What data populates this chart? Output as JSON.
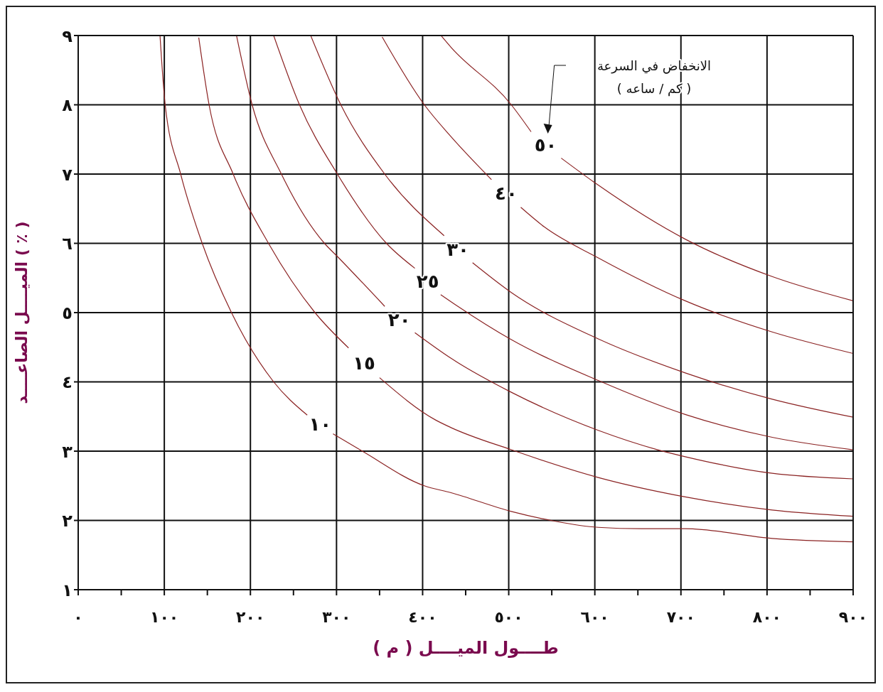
{
  "chart_data": {
    "type": "line",
    "xlabel": "طــــول الميــــل ( م )",
    "ylabel": "الميــــل الصاعــــد ( ٪ )",
    "legend_title": "الانخفاض في السرعة\n( كم / ساعه )",
    "xlim": [
      0,
      900
    ],
    "ylim": [
      1,
      9
    ],
    "xticks": [
      {
        "value": 0,
        "label": "٠"
      },
      {
        "value": 50,
        "label": null
      },
      {
        "value": 100,
        "label": "١٠٠"
      },
      {
        "value": 150,
        "label": null
      },
      {
        "value": 200,
        "label": "٢٠٠"
      },
      {
        "value": 250,
        "label": null
      },
      {
        "value": 300,
        "label": "٣٠٠"
      },
      {
        "value": 350,
        "label": null
      },
      {
        "value": 400,
        "label": "٤٠٠"
      },
      {
        "value": 450,
        "label": null
      },
      {
        "value": 500,
        "label": "٥٠٠"
      },
      {
        "value": 550,
        "label": null
      },
      {
        "value": 600,
        "label": "٦٠٠"
      },
      {
        "value": 650,
        "label": null
      },
      {
        "value": 700,
        "label": "٧٠٠"
      },
      {
        "value": 750,
        "label": null
      },
      {
        "value": 800,
        "label": "٨٠٠"
      },
      {
        "value": 850,
        "label": null
      },
      {
        "value": 900,
        "label": "٩٠٠"
      }
    ],
    "yticks": [
      {
        "value": 1,
        "label": "١"
      },
      {
        "value": 2,
        "label": "٢"
      },
      {
        "value": 3,
        "label": "٣"
      },
      {
        "value": 4,
        "label": "٤"
      },
      {
        "value": 5,
        "label": "٥"
      },
      {
        "value": 6,
        "label": "٦"
      },
      {
        "value": 7,
        "label": "٧"
      },
      {
        "value": 8,
        "label": "٨"
      },
      {
        "value": 9,
        "label": "٩"
      }
    ],
    "grid": true,
    "marker": "none",
    "line_style": "solid",
    "series": [
      {
        "name": "١٠",
        "color": "#8b2323",
        "x": [
          95,
          101,
          119,
          144,
          178,
          227,
          266,
          281,
          296,
          330,
          402,
          433,
          503,
          553,
          604,
          654,
          705,
          806,
          900
        ],
        "values": [
          9,
          8,
          7,
          6,
          5,
          4,
          3.52,
          null,
          3.25,
          3,
          2.5,
          2.4,
          2.13,
          1.99,
          1.9,
          1.88,
          1.88,
          1.74,
          1.69
        ]
      },
      {
        "name": "١٥",
        "color": "#8b2323",
        "x": [
          140,
          152,
          180,
          221,
          275,
          314,
          332,
          350,
          415,
          433,
          503,
          604,
          705,
          806,
          900
        ],
        "values": [
          8.97,
          8,
          7,
          6,
          5,
          4.49,
          null,
          4.06,
          3.45,
          3.34,
          3.02,
          2.62,
          2.34,
          2.15,
          2.06
        ]
      },
      {
        "name": "٢٠",
        "color": "#8b2323",
        "x": [
          184,
          202,
          236,
          286,
          301,
          356,
          373,
          391,
          433,
          503,
          604,
          673,
          705,
          806,
          900
        ],
        "values": [
          8.99,
          8,
          7,
          6,
          5.81,
          5.09,
          null,
          4.71,
          4.34,
          3.85,
          3.3,
          3.02,
          2.92,
          2.68,
          2.6
        ]
      },
      {
        "name": "٢٥",
        "color": "#8b2323",
        "x": [
          227,
          257,
          301,
          358,
          391,
          406,
          421,
          441,
          503,
          604,
          705,
          806,
          900
        ],
        "values": [
          9,
          8,
          7,
          6,
          5.64,
          null,
          5.26,
          5.09,
          4.61,
          4.02,
          3.53,
          3.2,
          3.02
        ]
      },
      {
        "name": "٣٠",
        "color": "#8b2323",
        "x": [
          270,
          305,
          356,
          425,
          441,
          458,
          503,
          604,
          705,
          806,
          900
        ],
        "values": [
          9,
          8,
          7,
          6.11,
          null,
          5.72,
          5.29,
          4.62,
          4.13,
          3.75,
          3.49
        ]
      },
      {
        "name": "٤٠",
        "color": "#8b2323",
        "x": [
          353,
          402,
          433,
          480,
          497,
          514,
          541,
          604,
          705,
          806,
          900
        ],
        "values": [
          8.98,
          8,
          7.54,
          6.92,
          null,
          6.52,
          6.24,
          5.79,
          5.17,
          4.72,
          4.41
        ]
      },
      {
        "name": "٥٠",
        "color": "#8b2323",
        "x": [
          422,
          433,
          503,
          526,
          543,
          561,
          604,
          705,
          806,
          900
        ],
        "values": [
          8.99,
          8.83,
          8,
          7.61,
          null,
          7.23,
          6.84,
          6.06,
          5.52,
          5.17
        ]
      }
    ]
  }
}
